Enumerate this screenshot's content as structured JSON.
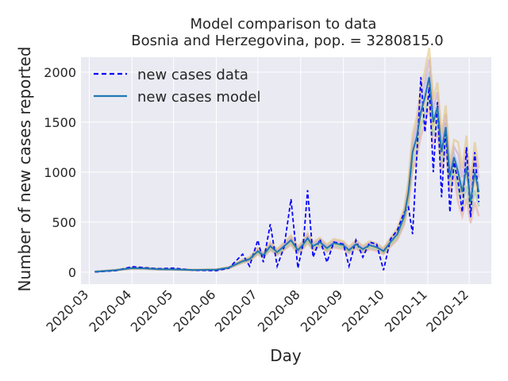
{
  "chart_data": {
    "type": "line",
    "title": "Model comparison to data",
    "subtitle": "Bosnia and Herzegovina, pop. = 3280815.0",
    "xlabel": "Day",
    "ylabel": "Number of new cases reported",
    "x_tick_labels": [
      "2020-03",
      "2020-04",
      "2020-05",
      "2020-06",
      "2020-07",
      "2020-08",
      "2020-09",
      "2020-10",
      "2020-11",
      "2020-12"
    ],
    "y_ticks": [
      0,
      500,
      1000,
      1500,
      2000
    ],
    "ylim": [
      -120,
      2150
    ],
    "grid": true,
    "legend_position": "top-left",
    "series": [
      {
        "name": "new cases data",
        "style": "dashed",
        "color": "#0000ff",
        "x": [
          "2020-03-05",
          "2020-03-20",
          "2020-04-01",
          "2020-04-10",
          "2020-04-20",
          "2020-05-01",
          "2020-05-15",
          "2020-06-01",
          "2020-06-10",
          "2020-06-20",
          "2020-06-25",
          "2020-07-01",
          "2020-07-05",
          "2020-07-10",
          "2020-07-15",
          "2020-07-20",
          "2020-07-25",
          "2020-07-30",
          "2020-08-03",
          "2020-08-06",
          "2020-08-10",
          "2020-08-15",
          "2020-08-20",
          "2020-08-25",
          "2020-09-01",
          "2020-09-05",
          "2020-09-10",
          "2020-09-15",
          "2020-09-20",
          "2020-09-25",
          "2020-09-30",
          "2020-10-05",
          "2020-10-10",
          "2020-10-15",
          "2020-10-18",
          "2020-10-21",
          "2020-10-24",
          "2020-10-27",
          "2020-10-30",
          "2020-11-02",
          "2020-11-05",
          "2020-11-08",
          "2020-11-11",
          "2020-11-14",
          "2020-11-17",
          "2020-11-20",
          "2020-11-23",
          "2020-11-26",
          "2020-11-29",
          "2020-12-02",
          "2020-12-05",
          "2020-12-08"
        ],
        "y": [
          2,
          15,
          55,
          45,
          35,
          40,
          20,
          15,
          40,
          180,
          60,
          320,
          100,
          480,
          60,
          250,
          730,
          40,
          300,
          820,
          150,
          330,
          100,
          300,
          280,
          60,
          320,
          150,
          300,
          280,
          20,
          330,
          420,
          600,
          650,
          380,
          1150,
          1950,
          1400,
          1850,
          1000,
          1700,
          750,
          1450,
          600,
          1100,
          900,
          600,
          1250,
          550,
          1200,
          700
        ]
      },
      {
        "name": "new cases model",
        "style": "solid",
        "color": "#1f77b4",
        "x": [
          "2020-03-05",
          "2020-03-20",
          "2020-04-01",
          "2020-04-10",
          "2020-04-20",
          "2020-05-01",
          "2020-05-15",
          "2020-06-01",
          "2020-06-10",
          "2020-06-20",
          "2020-06-25",
          "2020-07-01",
          "2020-07-05",
          "2020-07-10",
          "2020-07-15",
          "2020-07-20",
          "2020-07-25",
          "2020-07-30",
          "2020-08-03",
          "2020-08-06",
          "2020-08-10",
          "2020-08-15",
          "2020-08-20",
          "2020-08-25",
          "2020-09-01",
          "2020-09-05",
          "2020-09-10",
          "2020-09-15",
          "2020-09-20",
          "2020-09-25",
          "2020-09-30",
          "2020-10-05",
          "2020-10-10",
          "2020-10-15",
          "2020-10-18",
          "2020-10-21",
          "2020-10-24",
          "2020-10-27",
          "2020-10-30",
          "2020-11-02",
          "2020-11-05",
          "2020-11-08",
          "2020-11-11",
          "2020-11-14",
          "2020-11-17",
          "2020-11-20",
          "2020-11-23",
          "2020-11-26",
          "2020-11-29",
          "2020-12-02",
          "2020-12-05",
          "2020-12-08"
        ],
        "y": [
          5,
          20,
          40,
          38,
          30,
          28,
          22,
          25,
          45,
          110,
          130,
          210,
          170,
          260,
          200,
          260,
          320,
          220,
          280,
          340,
          260,
          300,
          240,
          290,
          270,
          220,
          280,
          230,
          270,
          250,
          210,
          300,
          380,
          560,
          800,
          1200,
          1350,
          1600,
          1750,
          1950,
          1500,
          1650,
          1200,
          1450,
          950,
          1150,
          1000,
          800,
          1050,
          700,
          1000,
          800
        ]
      }
    ]
  }
}
